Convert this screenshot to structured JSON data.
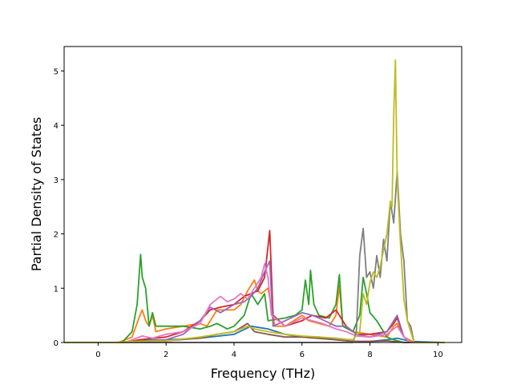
{
  "chart_data": {
    "type": "line",
    "title": "",
    "xlabel": "Frequency (THz)",
    "ylabel": "Partial Density of States",
    "xlim": [
      -1.0,
      10.7
    ],
    "ylim": [
      0,
      5.45
    ],
    "xticks": [
      0,
      2,
      4,
      6,
      8,
      10
    ],
    "yticks": [
      0,
      1,
      2,
      3,
      4,
      5
    ],
    "grid": false,
    "series": [
      {
        "color": "#1f77b4",
        "points": [
          [
            -1.0,
            0
          ],
          [
            0.5,
            0
          ],
          [
            1.0,
            0.02
          ],
          [
            1.3,
            0.04
          ],
          [
            2.0,
            0.05
          ],
          [
            3.0,
            0.08
          ],
          [
            4.0,
            0.15
          ],
          [
            4.5,
            0.3
          ],
          [
            5.0,
            0.25
          ],
          [
            5.5,
            0.15
          ],
          [
            6.0,
            0.1
          ],
          [
            6.5,
            0.1
          ],
          [
            7.0,
            0.05
          ],
          [
            7.5,
            0.02
          ],
          [
            8.0,
            0.02
          ],
          [
            8.5,
            0.05
          ],
          [
            8.8,
            0.08
          ],
          [
            9.2,
            0.02
          ],
          [
            10.2,
            0
          ]
        ]
      },
      {
        "color": "#ff7f0e",
        "points": [
          [
            -1.0,
            0
          ],
          [
            0.6,
            0
          ],
          [
            1.0,
            0.1
          ],
          [
            1.2,
            0.45
          ],
          [
            1.3,
            0.6
          ],
          [
            1.4,
            0.4
          ],
          [
            1.5,
            0.3
          ],
          [
            1.6,
            0.5
          ],
          [
            1.7,
            0.2
          ],
          [
            2.0,
            0.25
          ],
          [
            2.5,
            0.3
          ],
          [
            3.0,
            0.35
          ],
          [
            3.2,
            0.3
          ],
          [
            3.5,
            0.6
          ],
          [
            4.0,
            0.6
          ],
          [
            4.2,
            0.7
          ],
          [
            4.4,
            0.95
          ],
          [
            4.6,
            1.15
          ],
          [
            4.7,
            0.95
          ],
          [
            4.8,
            0.9
          ],
          [
            5.0,
            1.0
          ],
          [
            5.2,
            0.3
          ],
          [
            5.5,
            0.3
          ],
          [
            6.0,
            0.5
          ],
          [
            6.2,
            0.4
          ],
          [
            6.5,
            0.35
          ],
          [
            6.8,
            0.3
          ],
          [
            7.0,
            0.5
          ],
          [
            7.1,
            1.05
          ],
          [
            7.2,
            0.3
          ],
          [
            7.5,
            0.2
          ],
          [
            8.0,
            0.15
          ],
          [
            8.5,
            0.1
          ],
          [
            8.7,
            0.3
          ],
          [
            8.8,
            0.35
          ],
          [
            9.0,
            0.1
          ],
          [
            9.3,
            0
          ],
          [
            10.2,
            0
          ]
        ]
      },
      {
        "color": "#2ca02c",
        "points": [
          [
            -1.0,
            0
          ],
          [
            0.7,
            0
          ],
          [
            1.0,
            0.2
          ],
          [
            1.15,
            0.7
          ],
          [
            1.25,
            1.62
          ],
          [
            1.3,
            1.2
          ],
          [
            1.4,
            1.0
          ],
          [
            1.5,
            0.3
          ],
          [
            1.6,
            0.55
          ],
          [
            1.7,
            0.3
          ],
          [
            2.0,
            0.3
          ],
          [
            2.5,
            0.3
          ],
          [
            3.0,
            0.25
          ],
          [
            3.3,
            0.3
          ],
          [
            3.5,
            0.35
          ],
          [
            3.8,
            0.25
          ],
          [
            4.0,
            0.3
          ],
          [
            4.3,
            0.5
          ],
          [
            4.5,
            0.9
          ],
          [
            4.7,
            0.7
          ],
          [
            4.9,
            0.9
          ],
          [
            5.0,
            0.4
          ],
          [
            5.5,
            0.45
          ],
          [
            5.8,
            0.5
          ],
          [
            6.0,
            0.6
          ],
          [
            6.1,
            1.15
          ],
          [
            6.2,
            0.7
          ],
          [
            6.25,
            1.33
          ],
          [
            6.35,
            0.7
          ],
          [
            6.5,
            0.5
          ],
          [
            6.8,
            0.45
          ],
          [
            7.0,
            0.7
          ],
          [
            7.1,
            1.25
          ],
          [
            7.2,
            0.3
          ],
          [
            7.5,
            0.2
          ],
          [
            7.7,
            0.5
          ],
          [
            7.8,
            1.2
          ],
          [
            7.9,
            0.9
          ],
          [
            8.0,
            0.55
          ],
          [
            8.2,
            0.4
          ],
          [
            8.5,
            0.1
          ],
          [
            8.7,
            0.05
          ],
          [
            9.0,
            0
          ],
          [
            10.2,
            0
          ]
        ]
      },
      {
        "color": "#d62728",
        "points": [
          [
            -1.0,
            0
          ],
          [
            0.8,
            0
          ],
          [
            1.2,
            0.05
          ],
          [
            2.0,
            0.1
          ],
          [
            2.5,
            0.2
          ],
          [
            3.0,
            0.4
          ],
          [
            3.3,
            0.6
          ],
          [
            3.6,
            0.65
          ],
          [
            4.0,
            0.7
          ],
          [
            4.3,
            0.85
          ],
          [
            4.5,
            0.9
          ],
          [
            4.7,
            0.95
          ],
          [
            4.9,
            1.2
          ],
          [
            5.05,
            2.06
          ],
          [
            5.15,
            0.5
          ],
          [
            5.5,
            0.3
          ],
          [
            6.0,
            0.4
          ],
          [
            6.3,
            0.5
          ],
          [
            6.7,
            0.45
          ],
          [
            7.0,
            0.6
          ],
          [
            7.3,
            0.3
          ],
          [
            7.6,
            0.15
          ],
          [
            8.0,
            0.15
          ],
          [
            8.5,
            0.2
          ],
          [
            8.7,
            0.35
          ],
          [
            8.8,
            0.45
          ],
          [
            9.0,
            0.1
          ],
          [
            9.2,
            0
          ],
          [
            10.2,
            0
          ]
        ]
      },
      {
        "color": "#9467bd",
        "points": [
          [
            -1.0,
            0
          ],
          [
            0.8,
            0
          ],
          [
            1.2,
            0.02
          ],
          [
            2.0,
            0.05
          ],
          [
            2.5,
            0.15
          ],
          [
            3.0,
            0.4
          ],
          [
            3.3,
            0.65
          ],
          [
            3.6,
            0.55
          ],
          [
            4.0,
            0.7
          ],
          [
            4.3,
            0.75
          ],
          [
            4.5,
            0.85
          ],
          [
            4.7,
            1.0
          ],
          [
            4.9,
            1.3
          ],
          [
            5.05,
            1.5
          ],
          [
            5.15,
            0.3
          ],
          [
            5.5,
            0.4
          ],
          [
            6.0,
            0.55
          ],
          [
            6.3,
            0.5
          ],
          [
            6.5,
            0.45
          ],
          [
            7.0,
            0.3
          ],
          [
            7.3,
            0.3
          ],
          [
            7.6,
            0.15
          ],
          [
            8.0,
            0.1
          ],
          [
            8.5,
            0.2
          ],
          [
            8.8,
            0.5
          ],
          [
            9.0,
            0.1
          ],
          [
            9.2,
            0
          ],
          [
            10.2,
            0
          ]
        ]
      },
      {
        "color": "#8c564b",
        "points": [
          [
            -1.0,
            0
          ],
          [
            0.8,
            0
          ],
          [
            1.5,
            0.02
          ],
          [
            2.0,
            0.03
          ],
          [
            3.0,
            0.08
          ],
          [
            3.5,
            0.15
          ],
          [
            4.0,
            0.2
          ],
          [
            4.4,
            0.35
          ],
          [
            4.6,
            0.2
          ],
          [
            5.0,
            0.15
          ],
          [
            5.5,
            0.1
          ],
          [
            6.0,
            0.1
          ],
          [
            7.0,
            0.05
          ],
          [
            7.5,
            0.02
          ],
          [
            8.0,
            0.02
          ],
          [
            8.5,
            0.03
          ],
          [
            9.0,
            0
          ],
          [
            10.2,
            0
          ]
        ]
      },
      {
        "color": "#e377c2",
        "points": [
          [
            -1.0,
            0
          ],
          [
            0.8,
            0
          ],
          [
            1.0,
            0.05
          ],
          [
            1.3,
            0.12
          ],
          [
            1.6,
            0.08
          ],
          [
            2.0,
            0.15
          ],
          [
            2.5,
            0.2
          ],
          [
            3.0,
            0.35
          ],
          [
            3.3,
            0.7
          ],
          [
            3.6,
            0.85
          ],
          [
            3.8,
            0.75
          ],
          [
            4.0,
            0.8
          ],
          [
            4.2,
            0.9
          ],
          [
            4.4,
            0.8
          ],
          [
            4.6,
            1.0
          ],
          [
            4.8,
            1.2
          ],
          [
            4.9,
            1.45
          ],
          [
            5.0,
            1.2
          ],
          [
            5.1,
            0.5
          ],
          [
            5.5,
            0.3
          ],
          [
            6.0,
            0.45
          ],
          [
            6.3,
            0.4
          ],
          [
            6.6,
            0.35
          ],
          [
            7.0,
            0.25
          ],
          [
            7.3,
            0.2
          ],
          [
            7.6,
            0.12
          ],
          [
            8.0,
            0.1
          ],
          [
            8.5,
            0.15
          ],
          [
            8.8,
            0.3
          ],
          [
            9.0,
            0.1
          ],
          [
            9.2,
            0
          ],
          [
            10.2,
            0
          ]
        ]
      },
      {
        "color": "#7f7f7f",
        "points": [
          [
            -1.0,
            0
          ],
          [
            1.0,
            0
          ],
          [
            7.5,
            0
          ],
          [
            7.6,
            0.2
          ],
          [
            7.7,
            1.6
          ],
          [
            7.8,
            2.1
          ],
          [
            7.9,
            1.2
          ],
          [
            8.0,
            1.3
          ],
          [
            8.1,
            1.0
          ],
          [
            8.2,
            1.6
          ],
          [
            8.3,
            1.2
          ],
          [
            8.4,
            1.9
          ],
          [
            8.5,
            1.5
          ],
          [
            8.6,
            2.6
          ],
          [
            8.7,
            2.2
          ],
          [
            8.8,
            3.15
          ],
          [
            8.9,
            2.0
          ],
          [
            9.0,
            1.5
          ],
          [
            9.1,
            0.4
          ],
          [
            9.2,
            0.3
          ],
          [
            9.3,
            0
          ],
          [
            10.2,
            0
          ]
        ]
      },
      {
        "color": "#bcbd22",
        "points": [
          [
            -1.0,
            0
          ],
          [
            0.6,
            0
          ],
          [
            1.0,
            0.02
          ],
          [
            2.0,
            0.03
          ],
          [
            3.0,
            0.1
          ],
          [
            3.5,
            0.15
          ],
          [
            4.0,
            0.2
          ],
          [
            4.4,
            0.3
          ],
          [
            4.6,
            0.25
          ],
          [
            5.0,
            0.2
          ],
          [
            5.5,
            0.15
          ],
          [
            6.0,
            0.12
          ],
          [
            6.5,
            0.1
          ],
          [
            7.0,
            0.08
          ],
          [
            7.5,
            0.05
          ],
          [
            7.7,
            0.2
          ],
          [
            7.8,
            0.9
          ],
          [
            7.9,
            0.7
          ],
          [
            8.0,
            1.1
          ],
          [
            8.1,
            1.3
          ],
          [
            8.2,
            1.2
          ],
          [
            8.3,
            1.4
          ],
          [
            8.4,
            1.7
          ],
          [
            8.5,
            2.0
          ],
          [
            8.6,
            2.6
          ],
          [
            8.65,
            2.5
          ],
          [
            8.7,
            4.2
          ],
          [
            8.75,
            5.2
          ],
          [
            8.8,
            3.0
          ],
          [
            8.9,
            1.8
          ],
          [
            9.0,
            0.8
          ],
          [
            9.1,
            0.4
          ],
          [
            9.2,
            0.2
          ],
          [
            9.3,
            0
          ],
          [
            10.2,
            0
          ]
        ]
      }
    ]
  }
}
